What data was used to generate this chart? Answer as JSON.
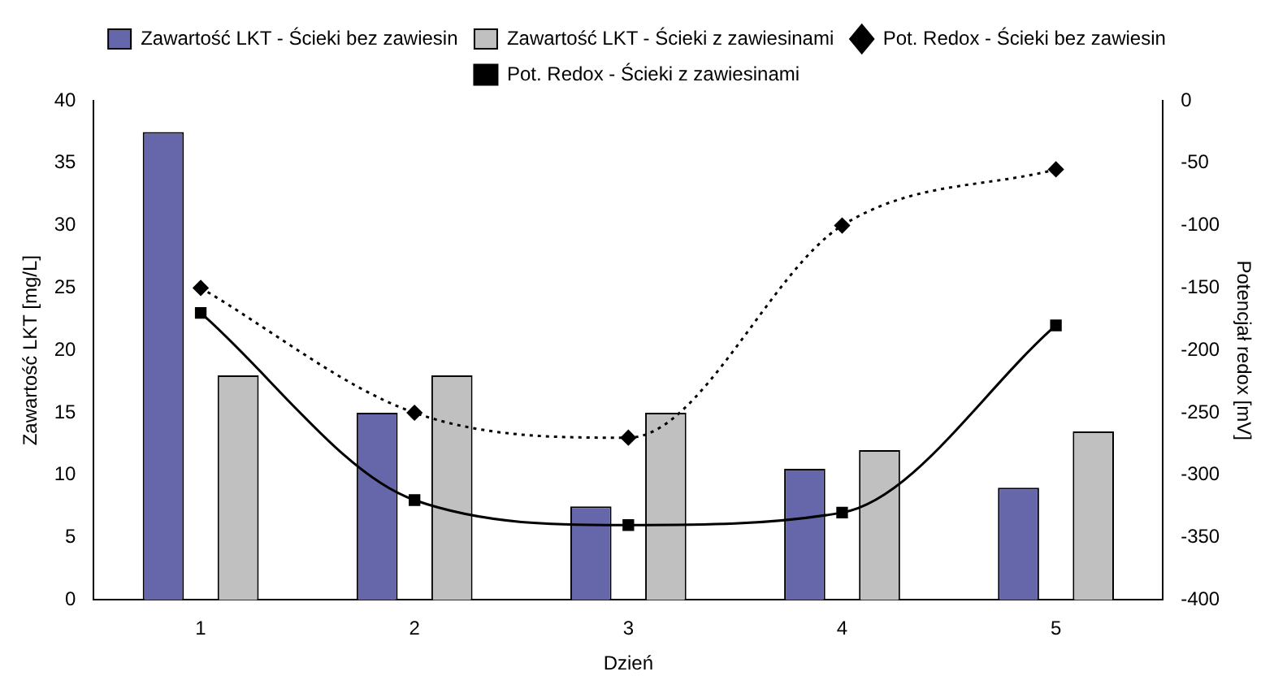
{
  "chart_data": {
    "type": "bar",
    "xlabel": "Dzień",
    "ylabel": "Zawartość LKT [mg/L]",
    "y2label": "Potencjał redox [mV]",
    "categories": [
      "1",
      "2",
      "3",
      "4",
      "5"
    ],
    "series": [
      {
        "name": "Zawartość LKT - Ścieki bez zawiesin",
        "color": "#6666aa",
        "values": [
          37.5,
          15,
          7.5,
          10.5,
          9
        ]
      },
      {
        "name": "Zawartość LKT - Ścieki z zawiesinami",
        "color": "#c0c0c0",
        "values": [
          18,
          18,
          15,
          12,
          13.5
        ]
      },
      {
        "name": "Pot. Redox - Ścieki bez zawiesin",
        "type": "line",
        "axis": "y2",
        "color": "#000000",
        "marker": "diamond",
        "line_style": "dotted",
        "values": [
          -150,
          -250,
          -270,
          -100,
          -55
        ]
      },
      {
        "name": "Pot. Redox - Ścieki z zawiesinami",
        "type": "line",
        "axis": "y2",
        "color": "#000000",
        "marker": "square",
        "line_style": "solid",
        "values": [
          -170,
          -320,
          -340,
          -330,
          -180
        ]
      }
    ],
    "ylim": [
      0,
      40
    ],
    "yticks": [
      0,
      5,
      10,
      15,
      20,
      25,
      30,
      35,
      40
    ],
    "y2lim": [
      -400,
      0
    ],
    "y2ticks": [
      -400,
      -350,
      -300,
      -250,
      -200,
      -150,
      -100,
      -50,
      0
    ],
    "grid": false,
    "legend": "top"
  }
}
